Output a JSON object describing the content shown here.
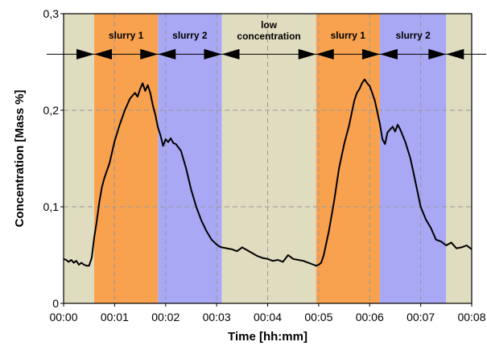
{
  "chart_data": {
    "type": "line",
    "title": "",
    "xlabel": "Time [hh:mm]",
    "ylabel": "Concentration  [Mass %]",
    "xlim": [
      0,
      8
    ],
    "ylim": [
      0,
      0.3
    ],
    "x_ticks": [
      {
        "value": 0,
        "label": "00:00"
      },
      {
        "value": 1,
        "label": "00:01"
      },
      {
        "value": 2,
        "label": "00:02"
      },
      {
        "value": 3,
        "label": "00:03"
      },
      {
        "value": 4,
        "label": "00:04"
      },
      {
        "value": 5,
        "label": "00:05"
      },
      {
        "value": 6,
        "label": "00:06"
      },
      {
        "value": 7,
        "label": "00:07"
      },
      {
        "value": 8,
        "label": "00:08"
      }
    ],
    "y_ticks": [
      {
        "value": 0,
        "label": "0"
      },
      {
        "value": 0.1,
        "label": "0,1"
      },
      {
        "value": 0.2,
        "label": "0,2"
      },
      {
        "value": 0.3,
        "label": "0,3"
      }
    ],
    "grid": true,
    "colors": {
      "baseline_band": "#e0dcc0",
      "slurry1_band": "#f8a24f",
      "slurry2_band": "#a8a8f4",
      "line": "#000000",
      "grid": "#999999"
    },
    "phases": [
      {
        "start": 0.0,
        "end": 0.6,
        "kind": "baseline",
        "label": ""
      },
      {
        "start": 0.6,
        "end": 1.85,
        "kind": "slurry1",
        "label": "slurry 1"
      },
      {
        "start": 1.85,
        "end": 3.1,
        "kind": "slurry2",
        "label": "slurry 2"
      },
      {
        "start": 3.1,
        "end": 4.95,
        "kind": "baseline",
        "label": "low concentration"
      },
      {
        "start": 4.95,
        "end": 6.2,
        "kind": "slurry1",
        "label": "slurry 1"
      },
      {
        "start": 6.2,
        "end": 7.5,
        "kind": "slurry2",
        "label": "slurry 2"
      },
      {
        "start": 7.5,
        "end": 8.0,
        "kind": "baseline",
        "label": ""
      }
    ],
    "arrow_level": 0.258,
    "series": [
      {
        "name": "",
        "x": [
          0,
          0.05,
          0.1,
          0.15,
          0.2,
          0.25,
          0.3,
          0.35,
          0.4,
          0.45,
          0.5,
          0.55,
          0.6,
          0.65,
          0.7,
          0.75,
          0.8,
          0.9,
          1.0,
          1.1,
          1.2,
          1.3,
          1.4,
          1.45,
          1.5,
          1.55,
          1.6,
          1.65,
          1.7,
          1.75,
          1.8,
          1.85,
          1.9,
          1.95,
          2.0,
          2.05,
          2.1,
          2.15,
          2.2,
          2.3,
          2.4,
          2.5,
          2.6,
          2.7,
          2.8,
          2.9,
          3.0,
          3.05,
          3.1,
          3.2,
          3.3,
          3.4,
          3.5,
          3.6,
          3.7,
          3.8,
          3.9,
          4.0,
          4.1,
          4.2,
          4.3,
          4.4,
          4.5,
          4.6,
          4.7,
          4.8,
          4.9,
          4.95,
          5.0,
          5.05,
          5.1,
          5.2,
          5.3,
          5.4,
          5.5,
          5.6,
          5.65,
          5.7,
          5.75,
          5.8,
          5.85,
          5.9,
          5.95,
          6.0,
          6.05,
          6.1,
          6.15,
          6.2,
          6.25,
          6.3,
          6.35,
          6.4,
          6.45,
          6.5,
          6.55,
          6.6,
          6.7,
          6.8,
          6.9,
          7.0,
          7.1,
          7.2,
          7.3,
          7.4,
          7.5,
          7.6,
          7.7,
          7.8,
          7.9,
          8.0
        ],
        "values": [
          0.046,
          0.045,
          0.043,
          0.045,
          0.042,
          0.044,
          0.04,
          0.042,
          0.04,
          0.039,
          0.039,
          0.047,
          0.068,
          0.085,
          0.105,
          0.12,
          0.13,
          0.145,
          0.168,
          0.185,
          0.2,
          0.212,
          0.218,
          0.214,
          0.222,
          0.228,
          0.22,
          0.226,
          0.218,
          0.205,
          0.195,
          0.182,
          0.174,
          0.163,
          0.17,
          0.167,
          0.171,
          0.166,
          0.165,
          0.158,
          0.14,
          0.118,
          0.1,
          0.086,
          0.075,
          0.066,
          0.061,
          0.059,
          0.058,
          0.057,
          0.056,
          0.054,
          0.058,
          0.055,
          0.052,
          0.049,
          0.047,
          0.046,
          0.044,
          0.045,
          0.043,
          0.05,
          0.046,
          0.045,
          0.044,
          0.042,
          0.04,
          0.039,
          0.04,
          0.042,
          0.05,
          0.075,
          0.105,
          0.14,
          0.165,
          0.185,
          0.198,
          0.21,
          0.218,
          0.222,
          0.228,
          0.232,
          0.228,
          0.225,
          0.218,
          0.21,
          0.198,
          0.186,
          0.17,
          0.165,
          0.177,
          0.18,
          0.183,
          0.178,
          0.185,
          0.18,
          0.167,
          0.15,
          0.125,
          0.1,
          0.087,
          0.078,
          0.066,
          0.064,
          0.06,
          0.063,
          0.057,
          0.058,
          0.06,
          0.056
        ]
      }
    ]
  }
}
